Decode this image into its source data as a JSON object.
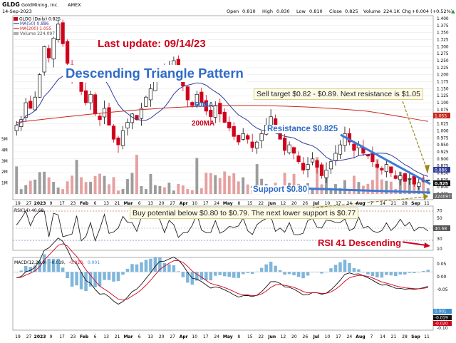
{
  "header": {
    "ticker": "GLDG",
    "company": "GoldMining, Inc.",
    "exchange": "AMEX",
    "date": "14-Sep-2023",
    "open_label": "Open",
    "open": "0.810",
    "high_label": "High",
    "high": "0.830",
    "low_label": "Low",
    "low": "0.810",
    "close_label": "Close",
    "close": "0.825",
    "volume_label": "Volume",
    "volume": "224.1K",
    "chg_label": "Chg",
    "chg": "+0.004 (+0.52%)",
    "chg_arrow": "▲"
  },
  "legend": {
    "price": "GLDG (Daily) 0.825",
    "ma50": "MA(50) 0.886",
    "ma200": "MA(200) 1.055",
    "volume": "Volume 224,097"
  },
  "annotations": {
    "last_update": "Last update: 09/14/23",
    "pattern": "Descending Triangle Pattern",
    "ma50_label": "50MA",
    "ma200_label": "200MA",
    "sell_target": "Sell target $0.82 - $0.89. Next resistance is $1.05",
    "resistance": "Resistance $0.825",
    "support": "Support $0.80",
    "buy_potential": "Buy potential below $0.80 to $0.79. The next lower support is $0.77",
    "rsi_desc": "RSI 41 Descending"
  },
  "rsi_panel": {
    "label": "RSI(14) 40.68",
    "value_tag": "40.68",
    "ticks": [
      "70",
      "50",
      "30",
      "10"
    ]
  },
  "macd_panel": {
    "label_prefix": "MACD(12,26,9)",
    "macd_value": "-0.019,",
    "signal_value": "-0.020,",
    "hist_value": "0.001",
    "ticks": [
      "0.05",
      "0.00",
      "-0.05",
      "-0.10",
      "-0.15",
      "-0.20"
    ],
    "tags": [
      "0.001",
      "-0.019",
      "-0.020"
    ]
  },
  "price_axis": {
    "ticks": [
      "1.400",
      "1.375",
      "1.350",
      "1.325",
      "1.300",
      "1.275",
      "1.250",
      "1.225",
      "1.200",
      "1.175",
      "1.150",
      "1.125",
      "1.100",
      "1.075",
      "1.050",
      "1.025",
      "1.000",
      "0.975",
      "0.950",
      "0.925",
      "0.900",
      "0.875",
      "0.850",
      "0.825",
      "0.800",
      "0.775"
    ],
    "tag_ma200": "1.055",
    "tag_ma50": "0.886",
    "tag_close": "0.825",
    "tag_vol": "224097"
  },
  "volume_axis": {
    "ticks": [
      "5M",
      "4M",
      "3M",
      "2M",
      "1M"
    ]
  },
  "time_axis": {
    "top": [
      "19",
      "27",
      "2023",
      "9",
      "17",
      "23",
      "Feb",
      "6",
      "13",
      "21",
      "Mar",
      "6",
      "13",
      "20",
      "27",
      "Apr",
      "10",
      "17",
      "24",
      "May",
      "8",
      "15",
      "22",
      "Jun",
      "12",
      "20",
      "26",
      "Jul",
      "10",
      "17",
      "24",
      "Aug",
      "7",
      "14",
      "21",
      "28",
      "Sep",
      "11"
    ],
    "bottom": [
      "19",
      "27",
      "2023",
      "9",
      "17",
      "23",
      "Feb",
      "6",
      "13",
      "21",
      "Mar",
      "6",
      "13",
      "20",
      "27",
      "Apr",
      "10",
      "17",
      "24",
      "May",
      "8",
      "15",
      "22",
      "Jun",
      "12",
      "20",
      "26",
      "Jul",
      "10",
      "17",
      "24",
      "Aug",
      "7",
      "14",
      "21",
      "28",
      "Sep",
      "11"
    ]
  },
  "colors": {
    "up": "#111111",
    "down": "#d0021b",
    "ma50": "#2f3d9a",
    "ma200": "#c8281e",
    "trend": "#3b7bd6",
    "annotation_red": "#d0021b",
    "annotation_blue": "#2f6bc7",
    "arrow_olive": "#9a8a18",
    "grid": "#e4e4e4",
    "macd_hist": "#7fb6dc"
  },
  "chart_data": {
    "type": "candlestick",
    "title": "GLDG GoldMining, Inc. AMEX",
    "x_range": [
      "2022-12-19",
      "2023-09-14"
    ],
    "ylim": [
      0.775,
      1.4
    ],
    "price_close": [
      1.02,
      1.04,
      1.1,
      1.08,
      1.12,
      1.2,
      1.3,
      1.26,
      1.33,
      1.38,
      1.31,
      1.24,
      1.18,
      1.22,
      1.14,
      1.1,
      1.13,
      1.06,
      1.04,
      1.08,
      1.02,
      0.97,
      0.95,
      1.0,
      1.03,
      1.06,
      1.04,
      1.08,
      1.12,
      1.15,
      1.2,
      1.22,
      1.19,
      1.23,
      1.25,
      1.2,
      1.16,
      1.11,
      1.09,
      1.13,
      1.1,
      1.07,
      1.05,
      1.09,
      1.06,
      1.03,
      1.01,
      0.98,
      0.96,
      0.99,
      0.97,
      0.94,
      0.96,
      0.99,
      1.02,
      1.05,
      1.0,
      0.97,
      0.93,
      0.95,
      0.92,
      0.89,
      0.86,
      0.88,
      0.9,
      0.87,
      0.84,
      0.86,
      0.89,
      0.92,
      0.95,
      0.99,
      0.96,
      0.93,
      0.95,
      0.92,
      0.91,
      0.89,
      0.87,
      0.86,
      0.88,
      0.85,
      0.83,
      0.84,
      0.82,
      0.83,
      0.81,
      0.815,
      0.82,
      0.825
    ],
    "ma50_last": 0.886,
    "ma200_last": 1.055,
    "resistance_line": {
      "start": [
        "2023-07-14",
        1.01
      ],
      "end": [
        "2023-09-14",
        0.825
      ]
    },
    "support_line": 0.8,
    "volume_ylim": [
      0,
      5000000
    ],
    "volume_last": 224097,
    "rsi": {
      "value": 40.68,
      "ylim": [
        10,
        80
      ],
      "levels": [
        30,
        50,
        70
      ]
    },
    "macd": {
      "params": [
        12,
        26,
        9
      ],
      "macd": -0.019,
      "signal": -0.02,
      "hist": 0.001,
      "ylim": [
        -0.2,
        0.05
      ]
    }
  }
}
